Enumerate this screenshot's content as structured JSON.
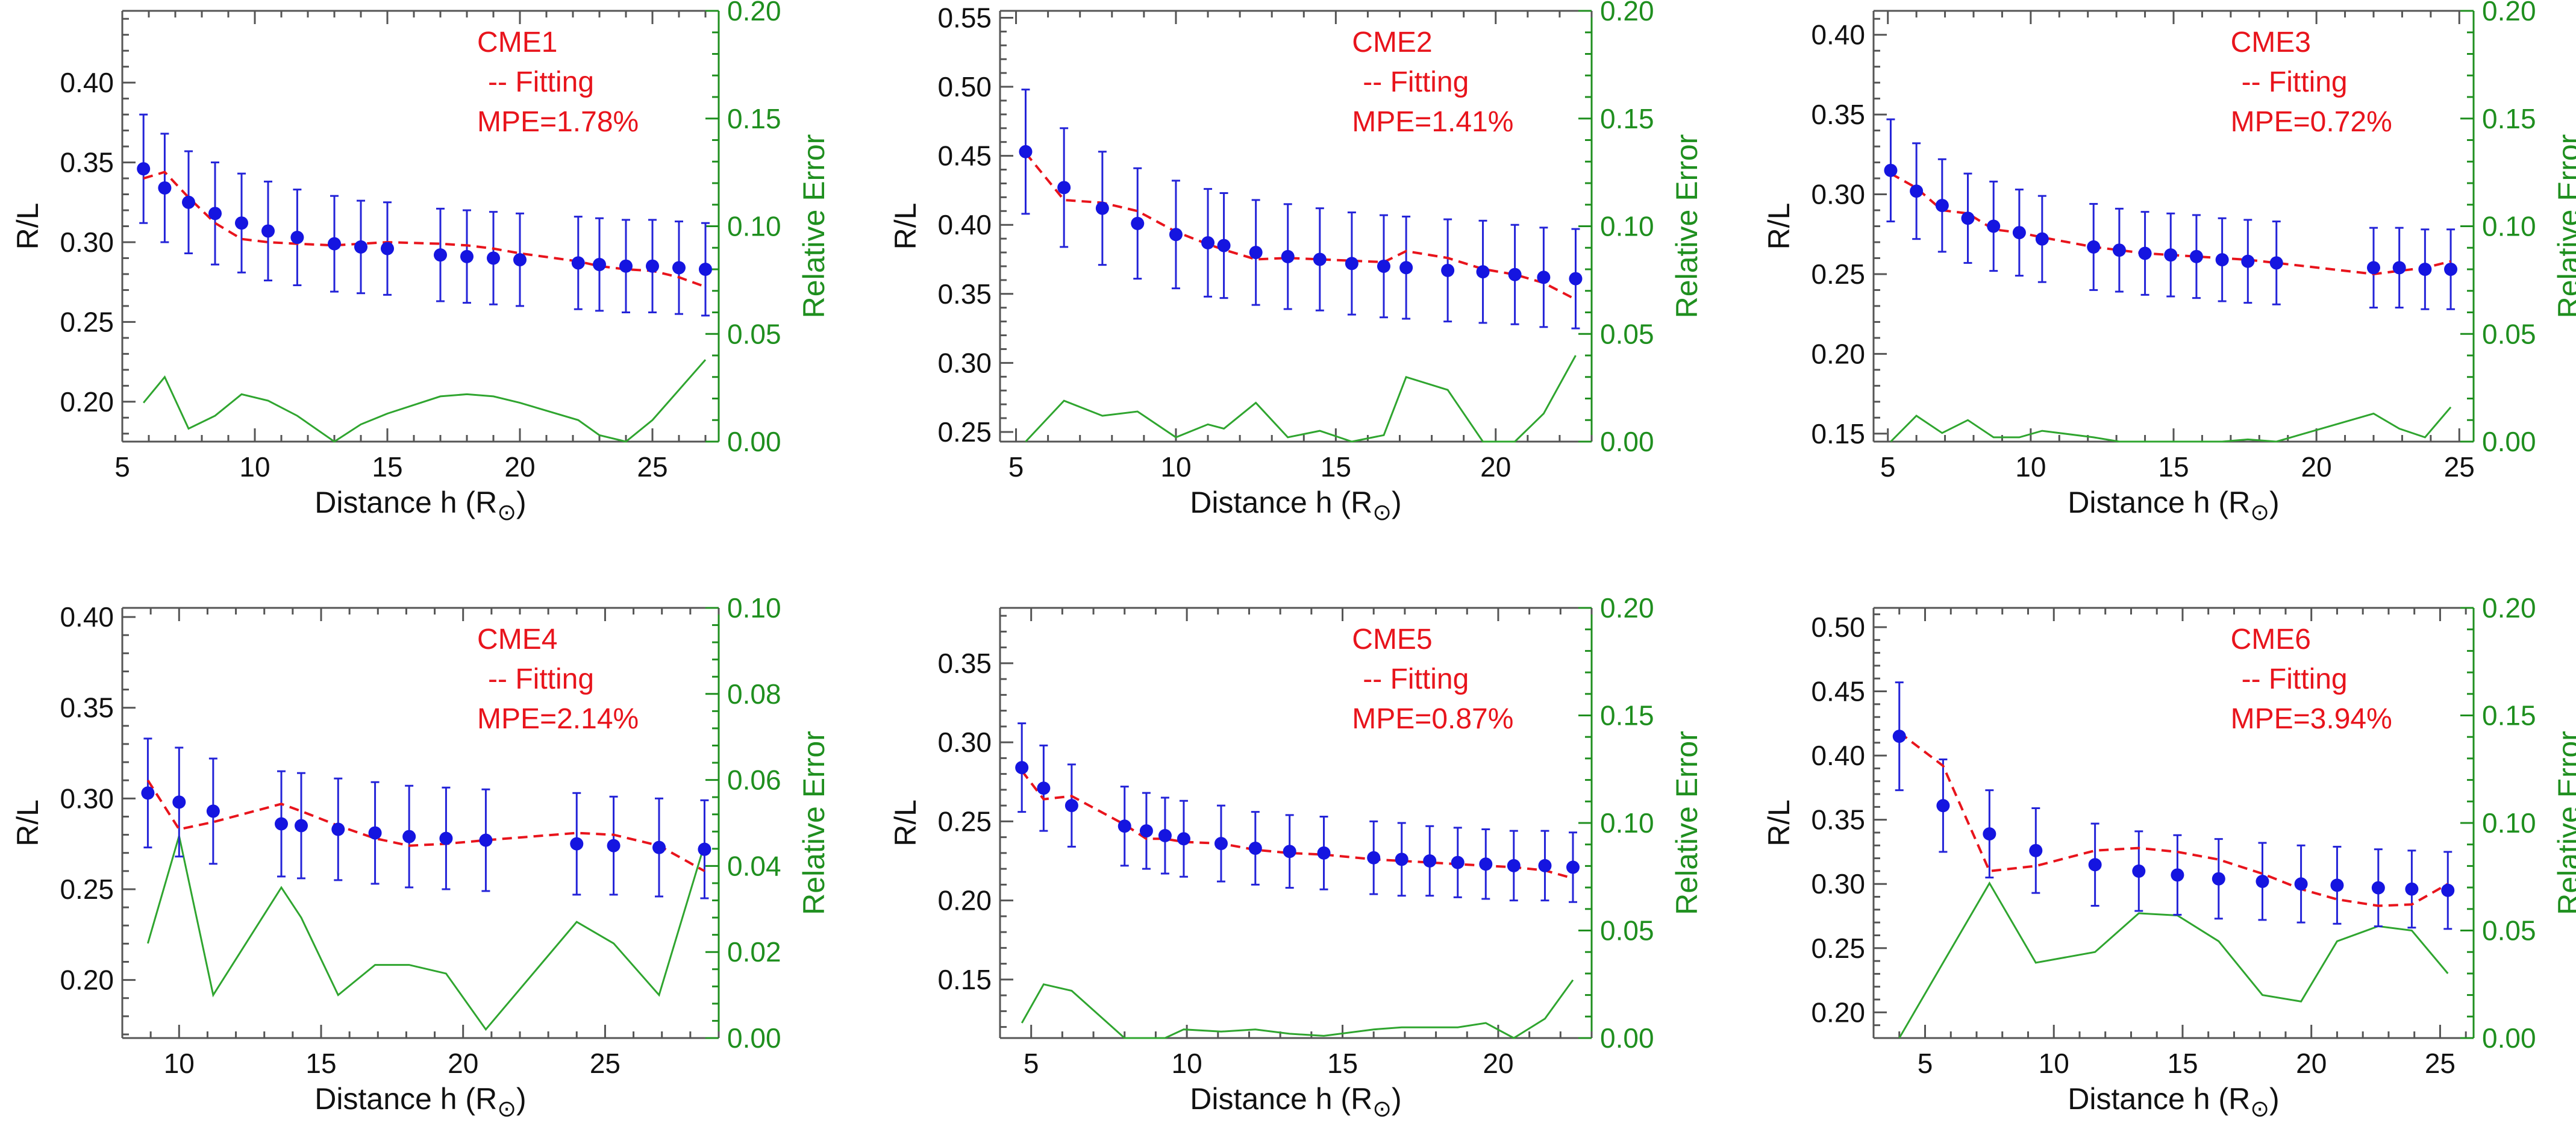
{
  "chart_data": [
    {
      "type": "scatter",
      "name": "CME1",
      "labels": [
        "CME1",
        "-- Fitting",
        "MPE=1.78%"
      ],
      "xlabel": "Distance h (R",
      "ylabel": "R/L",
      "y2label": "Relative Error",
      "xlim": [
        5,
        27.5
      ],
      "ylim": [
        0.175,
        0.445
      ],
      "y2lim": [
        0,
        0.2
      ],
      "xticks": [
        5,
        10,
        15,
        20,
        25
      ],
      "yticks": [
        0.2,
        0.25,
        0.3,
        0.35,
        0.4
      ],
      "y2ticks": [
        0.0,
        0.05,
        0.1,
        0.15,
        0.2
      ],
      "ytick_labels": [
        "0.20",
        "0.25",
        "0.30",
        "0.35",
        "0.40"
      ],
      "y2tick_labels": [
        "0.00",
        "0.05",
        "0.10",
        "0.15",
        "0.20"
      ],
      "x": [
        5.8,
        6.6,
        7.5,
        8.5,
        9.5,
        10.5,
        11.6,
        13.0,
        14.0,
        15.0,
        17.0,
        18.0,
        19.0,
        20.0,
        22.2,
        23.0,
        24.0,
        25.0,
        26.0,
        27.0
      ],
      "y": [
        0.346,
        0.334,
        0.325,
        0.318,
        0.312,
        0.307,
        0.303,
        0.299,
        0.297,
        0.296,
        0.292,
        0.291,
        0.29,
        0.289,
        0.287,
        0.286,
        0.285,
        0.285,
        0.284,
        0.283
      ],
      "error": [
        0.034,
        0.034,
        0.032,
        0.032,
        0.031,
        0.031,
        0.03,
        0.03,
        0.029,
        0.029,
        0.029,
        0.029,
        0.029,
        0.029,
        0.029,
        0.029,
        0.029,
        0.029,
        0.029,
        0.029
      ],
      "fit_x": [
        5.8,
        6.6,
        7.5,
        8.5,
        9.5,
        10.5,
        11.6,
        13.0,
        14.0,
        15.0,
        17.0,
        18.0,
        19.0,
        20.0,
        22.2,
        23.0,
        24.0,
        25.0,
        26.0,
        27.0
      ],
      "fit_y": [
        0.34,
        0.344,
        0.328,
        0.312,
        0.302,
        0.3,
        0.299,
        0.298,
        0.299,
        0.3,
        0.299,
        0.298,
        0.296,
        0.293,
        0.288,
        0.285,
        0.283,
        0.282,
        0.278,
        0.272
      ],
      "rel_x": [
        5.8,
        6.6,
        7.5,
        8.5,
        9.5,
        10.5,
        11.6,
        13.0,
        14.0,
        15.0,
        17.0,
        18.0,
        19.0,
        20.0,
        22.2,
        23.0,
        24.0,
        25.0,
        26.0,
        27.0
      ],
      "rel_y": [
        0.018,
        0.03,
        0.006,
        0.012,
        0.022,
        0.019,
        0.012,
        0.0,
        0.008,
        0.013,
        0.021,
        0.022,
        0.021,
        0.018,
        0.01,
        0.003,
        0.0,
        0.01,
        0.024,
        0.038
      ]
    },
    {
      "type": "scatter",
      "name": "CME2",
      "labels": [
        "CME2",
        "-- Fitting",
        "MPE=1.41%"
      ],
      "xlabel": "Distance h (R",
      "ylabel": "R/L",
      "y2label": "Relative Error",
      "xlim": [
        4.5,
        23
      ],
      "ylim": [
        0.243,
        0.555
      ],
      "y2lim": [
        0,
        0.2
      ],
      "xticks": [
        5,
        10,
        15,
        20
      ],
      "yticks": [
        0.25,
        0.3,
        0.35,
        0.4,
        0.45,
        0.5,
        0.55
      ],
      "y2ticks": [
        0.0,
        0.05,
        0.1,
        0.15,
        0.2
      ],
      "ytick_labels": [
        "0.25",
        "0.30",
        "0.35",
        "0.40",
        "0.45",
        "0.50",
        "0.55"
      ],
      "y2tick_labels": [
        "0.00",
        "0.05",
        "0.10",
        "0.15",
        "0.20"
      ],
      "x": [
        5.3,
        6.5,
        7.7,
        8.8,
        10.0,
        11.0,
        11.5,
        12.5,
        13.5,
        14.5,
        15.5,
        16.5,
        17.2,
        18.5,
        19.6,
        20.6,
        21.5,
        22.5
      ],
      "y": [
        0.453,
        0.427,
        0.412,
        0.401,
        0.393,
        0.387,
        0.385,
        0.38,
        0.377,
        0.375,
        0.372,
        0.37,
        0.369,
        0.367,
        0.366,
        0.364,
        0.362,
        0.361
      ],
      "error": [
        0.045,
        0.043,
        0.041,
        0.04,
        0.039,
        0.039,
        0.038,
        0.038,
        0.038,
        0.037,
        0.037,
        0.037,
        0.037,
        0.037,
        0.037,
        0.036,
        0.036,
        0.036
      ],
      "fit_x": [
        5.3,
        6.5,
        7.7,
        8.8,
        10.0,
        11.0,
        11.5,
        12.5,
        13.5,
        14.5,
        15.5,
        16.5,
        17.2,
        18.5,
        19.6,
        20.6,
        21.5,
        22.5
      ],
      "fit_y": [
        0.452,
        0.418,
        0.416,
        0.41,
        0.395,
        0.386,
        0.382,
        0.375,
        0.376,
        0.375,
        0.374,
        0.373,
        0.381,
        0.376,
        0.368,
        0.364,
        0.358,
        0.346
      ],
      "rel_x": [
        5.3,
        6.5,
        7.7,
        8.8,
        10.0,
        11.0,
        11.5,
        12.5,
        13.5,
        14.5,
        15.5,
        16.5,
        17.2,
        18.5,
        19.6,
        20.6,
        21.5,
        22.5
      ],
      "rel_y": [
        0.0,
        0.019,
        0.012,
        0.014,
        0.002,
        0.008,
        0.006,
        0.018,
        0.002,
        0.005,
        0.0,
        0.003,
        0.03,
        0.024,
        0.0,
        0.0,
        0.013,
        0.04
      ]
    },
    {
      "type": "scatter",
      "name": "CME3",
      "labels": [
        "CME3",
        "-- Fitting",
        "MPE=0.72%"
      ],
      "xlabel": "Distance h (R",
      "ylabel": "R/L",
      "y2label": "Relative Error",
      "xlim": [
        4.5,
        25.5
      ],
      "ylim": [
        0.145,
        0.415
      ],
      "y2lim": [
        0,
        0.2
      ],
      "xticks": [
        5,
        10,
        15,
        20,
        25
      ],
      "yticks": [
        0.15,
        0.2,
        0.25,
        0.3,
        0.35,
        0.4
      ],
      "y2ticks": [
        0.0,
        0.05,
        0.1,
        0.15,
        0.2
      ],
      "ytick_labels": [
        "0.15",
        "0.20",
        "0.25",
        "0.30",
        "0.35",
        "0.40"
      ],
      "y2tick_labels": [
        "0.00",
        "0.05",
        "0.10",
        "0.15",
        "0.20"
      ],
      "x": [
        5.1,
        6.0,
        6.9,
        7.8,
        8.7,
        9.6,
        10.4,
        12.2,
        13.1,
        14.0,
        14.9,
        15.8,
        16.7,
        17.6,
        18.6,
        22.0,
        22.9,
        23.8,
        24.7
      ],
      "y": [
        0.315,
        0.302,
        0.293,
        0.285,
        0.28,
        0.276,
        0.272,
        0.267,
        0.265,
        0.263,
        0.262,
        0.261,
        0.259,
        0.258,
        0.257,
        0.254,
        0.254,
        0.253,
        0.253
      ],
      "error": [
        0.032,
        0.03,
        0.029,
        0.028,
        0.028,
        0.027,
        0.027,
        0.027,
        0.026,
        0.026,
        0.026,
        0.026,
        0.026,
        0.026,
        0.026,
        0.025,
        0.025,
        0.025,
        0.025
      ],
      "fit_x": [
        5.1,
        6.0,
        6.9,
        7.8,
        8.7,
        9.6,
        10.4,
        12.2,
        13.1,
        14.0,
        14.9,
        15.8,
        16.7,
        17.6,
        18.6,
        22.0,
        22.9,
        23.8,
        24.7
      ],
      "fit_y": [
        0.313,
        0.304,
        0.29,
        0.288,
        0.278,
        0.276,
        0.273,
        0.267,
        0.265,
        0.263,
        0.262,
        0.261,
        0.26,
        0.259,
        0.257,
        0.25,
        0.252,
        0.254,
        0.258
      ],
      "rel_x": [
        5.1,
        6.0,
        6.9,
        7.8,
        8.7,
        9.6,
        10.4,
        12.2,
        13.1,
        14.0,
        14.9,
        15.8,
        16.7,
        17.6,
        18.6,
        22.0,
        22.9,
        23.8,
        24.7
      ],
      "rel_y": [
        0.0,
        0.012,
        0.004,
        0.01,
        0.002,
        0.002,
        0.005,
        0.002,
        0.0,
        0.0,
        0.0,
        0.0,
        0.0,
        0.001,
        0.0,
        0.013,
        0.006,
        0.002,
        0.016
      ]
    },
    {
      "type": "scatter",
      "name": "CME4",
      "labels": [
        "CME4",
        "-- Fitting",
        "MPE=2.14%"
      ],
      "xlabel": "Distance h (R",
      "ylabel": "R/L",
      "y2label": "Relative Error",
      "xlim": [
        8,
        29
      ],
      "ylim": [
        0.168,
        0.405
      ],
      "y2lim": [
        0,
        0.1
      ],
      "xticks": [
        10,
        15,
        20,
        25
      ],
      "yticks": [
        0.2,
        0.25,
        0.3,
        0.35,
        0.4
      ],
      "y2ticks": [
        0.0,
        0.02,
        0.04,
        0.06,
        0.08,
        0.1
      ],
      "ytick_labels": [
        "0.20",
        "0.25",
        "0.30",
        "0.35",
        "0.40"
      ],
      "y2tick_labels": [
        "0.00",
        "0.02",
        "0.04",
        "0.06",
        "0.08",
        "0.10"
      ],
      "x": [
        8.9,
        10.0,
        11.2,
        13.6,
        14.3,
        15.6,
        16.9,
        18.1,
        19.4,
        20.8,
        24.0,
        25.3,
        26.9,
        28.5
      ],
      "y": [
        0.303,
        0.298,
        0.293,
        0.286,
        0.285,
        0.283,
        0.281,
        0.279,
        0.278,
        0.277,
        0.275,
        0.274,
        0.273,
        0.272
      ],
      "error": [
        0.03,
        0.03,
        0.029,
        0.029,
        0.029,
        0.028,
        0.028,
        0.028,
        0.028,
        0.028,
        0.028,
        0.027,
        0.027,
        0.027
      ],
      "fit_x": [
        8.9,
        10.0,
        11.2,
        13.6,
        14.3,
        15.6,
        16.9,
        18.1,
        19.4,
        20.8,
        24.0,
        25.3,
        26.9,
        28.5
      ],
      "fit_y": [
        0.31,
        0.283,
        0.287,
        0.297,
        0.293,
        0.285,
        0.278,
        0.274,
        0.275,
        0.277,
        0.281,
        0.28,
        0.274,
        0.26
      ],
      "rel_x": [
        8.9,
        10.0,
        11.2,
        13.6,
        14.3,
        15.6,
        16.9,
        18.1,
        19.4,
        20.8,
        24.0,
        25.3,
        26.9,
        28.5
      ],
      "rel_y": [
        0.022,
        0.047,
        0.01,
        0.035,
        0.028,
        0.01,
        0.017,
        0.017,
        0.015,
        0.002,
        0.027,
        0.022,
        0.01,
        0.045
      ]
    },
    {
      "type": "scatter",
      "name": "CME5",
      "labels": [
        "CME5",
        "-- Fitting",
        "MPE=0.87%"
      ],
      "xlabel": "Distance h (R",
      "ylabel": "R/L",
      "y2label": "Relative Error",
      "xlim": [
        4,
        23
      ],
      "ylim": [
        0.113,
        0.385
      ],
      "y2lim": [
        0,
        0.2
      ],
      "xticks": [
        5,
        10,
        15,
        20
      ],
      "yticks": [
        0.15,
        0.2,
        0.25,
        0.3,
        0.35
      ],
      "y2ticks": [
        0.0,
        0.05,
        0.1,
        0.15,
        0.2
      ],
      "ytick_labels": [
        "0.15",
        "0.20",
        "0.25",
        "0.30",
        "0.35"
      ],
      "y2tick_labels": [
        "0.00",
        "0.05",
        "0.10",
        "0.15",
        "0.20"
      ],
      "x": [
        4.7,
        5.4,
        6.3,
        8.0,
        8.7,
        9.3,
        9.9,
        11.1,
        12.2,
        13.3,
        14.4,
        16.0,
        16.9,
        17.8,
        18.7,
        19.6,
        20.5,
        21.5,
        22.4
      ],
      "y": [
        0.284,
        0.271,
        0.26,
        0.247,
        0.244,
        0.241,
        0.239,
        0.236,
        0.233,
        0.231,
        0.23,
        0.227,
        0.226,
        0.225,
        0.224,
        0.223,
        0.222,
        0.222,
        0.221
      ],
      "error": [
        0.028,
        0.027,
        0.026,
        0.025,
        0.024,
        0.024,
        0.024,
        0.024,
        0.023,
        0.023,
        0.023,
        0.023,
        0.023,
        0.022,
        0.022,
        0.022,
        0.022,
        0.022,
        0.022
      ],
      "fit_x": [
        4.7,
        5.4,
        6.3,
        8.0,
        8.7,
        9.3,
        9.9,
        11.1,
        12.2,
        13.3,
        14.4,
        16.0,
        16.9,
        17.8,
        18.7,
        19.6,
        20.5,
        21.5,
        22.4
      ],
      "fit_y": [
        0.282,
        0.264,
        0.266,
        0.248,
        0.239,
        0.239,
        0.237,
        0.236,
        0.232,
        0.23,
        0.229,
        0.226,
        0.225,
        0.224,
        0.223,
        0.222,
        0.221,
        0.219,
        0.214
      ],
      "rel_x": [
        4.7,
        5.4,
        6.3,
        8.0,
        8.7,
        9.3,
        9.9,
        11.1,
        12.2,
        13.3,
        14.4,
        16.0,
        16.9,
        17.8,
        18.7,
        19.6,
        20.5,
        21.5,
        22.4
      ],
      "rel_y": [
        0.007,
        0.025,
        0.022,
        0.0,
        0.0,
        0.0,
        0.004,
        0.003,
        0.004,
        0.002,
        0.001,
        0.004,
        0.005,
        0.005,
        0.005,
        0.007,
        0.0,
        0.009,
        0.027
      ]
    },
    {
      "type": "scatter",
      "name": "CME6",
      "labels": [
        "CME6",
        "-- Fitting",
        "MPE=3.94%"
      ],
      "xlabel": "Distance h (R",
      "ylabel": "R/L",
      "y2label": "Relative Error",
      "xlim": [
        3,
        26.3
      ],
      "ylim": [
        0.18,
        0.515
      ],
      "y2lim": [
        0,
        0.2
      ],
      "xticks": [
        5,
        10,
        15,
        20,
        25
      ],
      "yticks": [
        0.2,
        0.25,
        0.3,
        0.35,
        0.4,
        0.45,
        0.5
      ],
      "y2ticks": [
        0.0,
        0.05,
        0.1,
        0.15,
        0.2
      ],
      "ytick_labels": [
        "0.20",
        "0.25",
        "0.30",
        "0.35",
        "0.40",
        "0.45",
        "0.50"
      ],
      "y2tick_labels": [
        "0.00",
        "0.05",
        "0.10",
        "0.15",
        "0.20"
      ],
      "x": [
        4.0,
        5.7,
        7.5,
        9.3,
        11.6,
        13.3,
        14.8,
        16.4,
        18.1,
        19.6,
        21.0,
        22.6,
        23.9,
        25.3
      ],
      "y": [
        0.415,
        0.361,
        0.339,
        0.326,
        0.315,
        0.31,
        0.307,
        0.304,
        0.302,
        0.3,
        0.299,
        0.297,
        0.296,
        0.295
      ],
      "error": [
        0.042,
        0.036,
        0.034,
        0.033,
        0.032,
        0.031,
        0.031,
        0.031,
        0.03,
        0.03,
        0.03,
        0.03,
        0.03,
        0.03
      ],
      "fit_x": [
        4.0,
        5.7,
        7.5,
        9.3,
        11.6,
        13.3,
        14.8,
        16.4,
        18.1,
        19.6,
        21.0,
        22.6,
        23.9,
        25.3
      ],
      "fit_y": [
        0.418,
        0.392,
        0.31,
        0.314,
        0.326,
        0.328,
        0.325,
        0.319,
        0.308,
        0.296,
        0.288,
        0.283,
        0.284,
        0.3
      ],
      "rel_x": [
        4.0,
        5.7,
        7.5,
        9.3,
        11.6,
        13.3,
        14.8,
        16.4,
        18.1,
        19.6,
        21.0,
        22.6,
        23.9,
        25.3
      ],
      "rel_y": [
        0.0,
        0.035,
        0.072,
        0.035,
        0.04,
        0.058,
        0.057,
        0.045,
        0.02,
        0.017,
        0.045,
        0.052,
        0.05,
        0.03
      ]
    }
  ]
}
